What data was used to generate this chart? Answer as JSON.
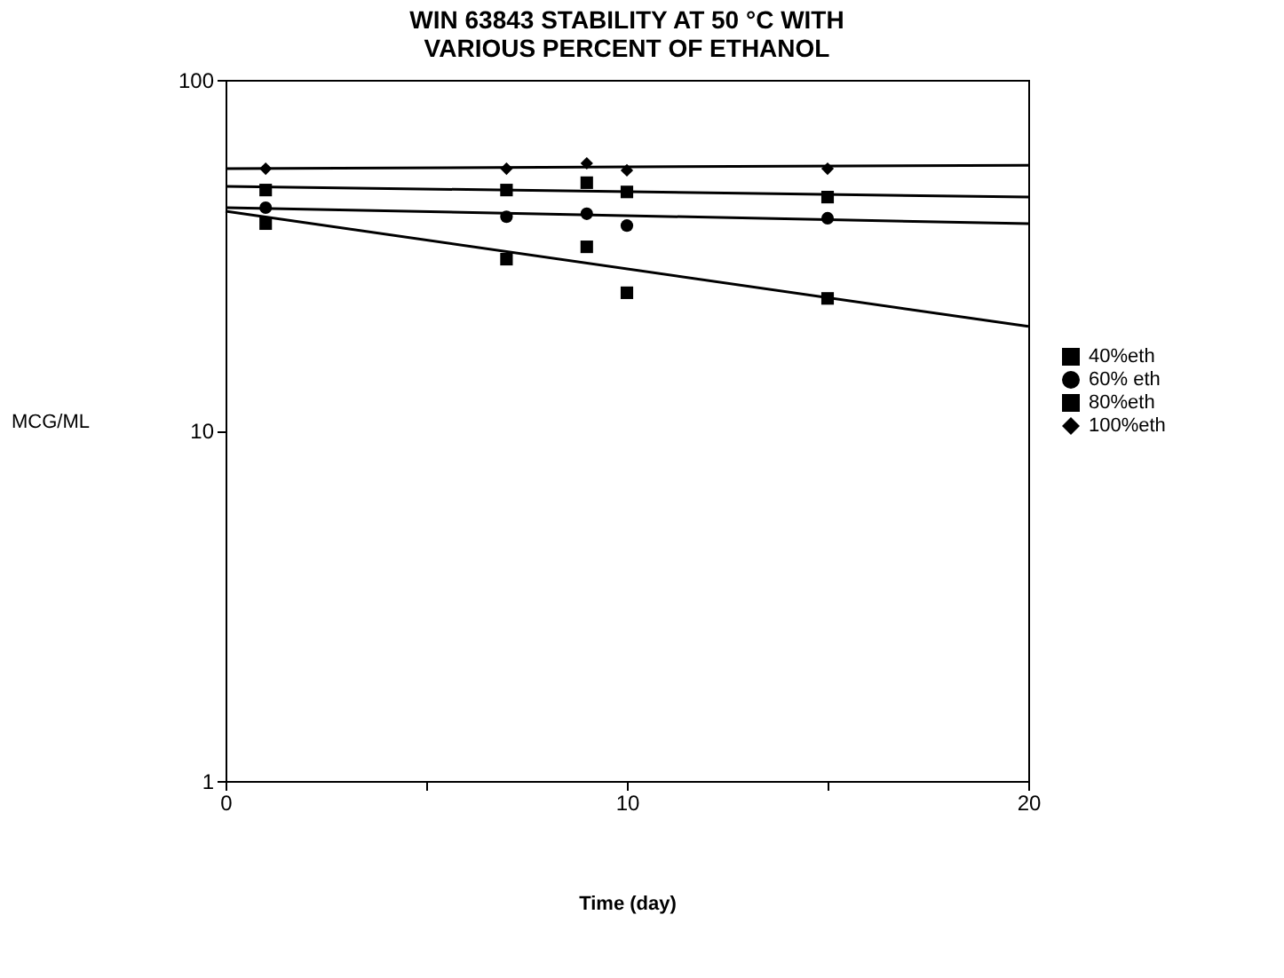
{
  "chart_data": {
    "type": "scatter",
    "title": [
      "WIN 63843 STABILITY AT 50 °C WITH",
      "VARIOUS PERCENT OF ETHANOL"
    ],
    "xlabel": "Time (day)",
    "ylabel": "MCG/ML",
    "log": "y",
    "xlim": [
      0,
      20
    ],
    "xticks": [
      0,
      {
        "value": 5,
        "label": null
      },
      10,
      {
        "value": 15,
        "label": null
      },
      20
    ],
    "ylim": [
      1,
      100
    ],
    "yticks": [
      1,
      10,
      100
    ],
    "grid": false,
    "legend": "right",
    "series": [
      {
        "name": "40%eth",
        "color": "#000000",
        "marker": "square",
        "x": [
          1,
          7,
          9,
          10,
          15
        ],
        "values": [
          38.9,
          30.8,
          33.4,
          24.7,
          23.8
        ]
      },
      {
        "name": "60% eth",
        "color": "#000000",
        "marker": "circle",
        "x": [
          1,
          7,
          9,
          10,
          15
        ],
        "values": [
          43.2,
          40.7,
          41.5,
          38.4,
          40.3
        ]
      },
      {
        "name": "80%eth",
        "color": "#000000",
        "marker": "square",
        "x": [
          1,
          7,
          9,
          10,
          15
        ],
        "values": [
          48.5,
          48.5,
          50.9,
          47.9,
          46.3
        ]
      },
      {
        "name": "100%eth",
        "color": "#000000",
        "marker": "diamond",
        "x": [
          1,
          7,
          9,
          10,
          15
        ],
        "values": [
          55.8,
          55.8,
          57.8,
          55.2,
          55.8
        ]
      },
      {
        "type": "line",
        "color": "#000000",
        "x": [
          0,
          20
        ],
        "values": [
          42.2,
          19.8
        ]
      },
      {
        "type": "line",
        "color": "#000000",
        "x": [
          0,
          20
        ],
        "values": [
          43.2,
          38.9
        ]
      },
      {
        "type": "line",
        "color": "#000000",
        "x": [
          0,
          20
        ],
        "values": [
          49.7,
          46.3
        ]
      },
      {
        "type": "line",
        "color": "#000000",
        "x": [
          0,
          20
        ],
        "values": [
          55.8,
          57.1
        ]
      }
    ]
  }
}
